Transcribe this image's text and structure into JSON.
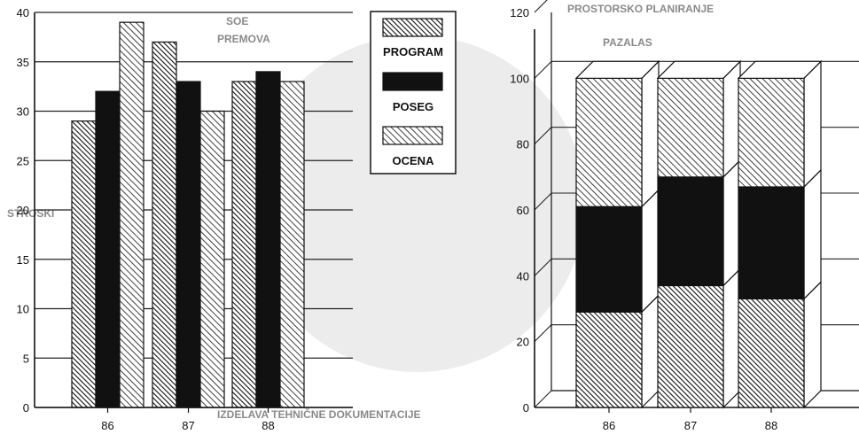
{
  "chart_data": [
    {
      "type": "bar",
      "categories": [
        "86",
        "87",
        "88"
      ],
      "category_tick_labels": [
        "86",
        "87",
        "88"
      ],
      "series": [
        {
          "name": "PROGRAM",
          "values": [
            29,
            37,
            33
          ]
        },
        {
          "name": "POSEG",
          "values": [
            32,
            33,
            34
          ]
        },
        {
          "name": "OCENA",
          "values": [
            39,
            30,
            33
          ]
        }
      ],
      "ylim": [
        0,
        40
      ],
      "yticks": [
        0,
        5,
        10,
        15,
        20,
        25,
        30,
        35,
        40
      ],
      "grid": true,
      "legend_position": "top-right"
    },
    {
      "type": "bar",
      "stacked": true,
      "style": "3d",
      "categories": [
        "86",
        "87",
        "88"
      ],
      "series": [
        {
          "name": "PROGRAM",
          "values": [
            29,
            37,
            33
          ]
        },
        {
          "name": "POSEG",
          "values": [
            32,
            33,
            34
          ]
        },
        {
          "name": "OCENA",
          "values": [
            39,
            30,
            33
          ]
        }
      ],
      "ylim": [
        0,
        120
      ],
      "yticks": [
        0,
        20,
        40,
        60,
        80,
        100,
        120
      ],
      "grid": true
    }
  ],
  "legend": {
    "items": [
      {
        "label": "PROGRAM",
        "pattern": "hatch-dense"
      },
      {
        "label": "POSEG",
        "pattern": "solid-black"
      },
      {
        "label": "OCENA",
        "pattern": "hatch-light"
      }
    ]
  },
  "background_text": [
    "STROSKI",
    "SOE",
    "PREMOVA",
    "PROSTORSKO PLANIRANJE",
    "PAZALAS",
    "IZDELAVA TEHNIČNE DOKUMENTACIJE"
  ],
  "colors": {
    "ink": "#111111",
    "paper": "#ffffff",
    "grid": "#222222",
    "ghost_circle": "#d9d9d9",
    "ghost_text": "#8a8a8a"
  }
}
